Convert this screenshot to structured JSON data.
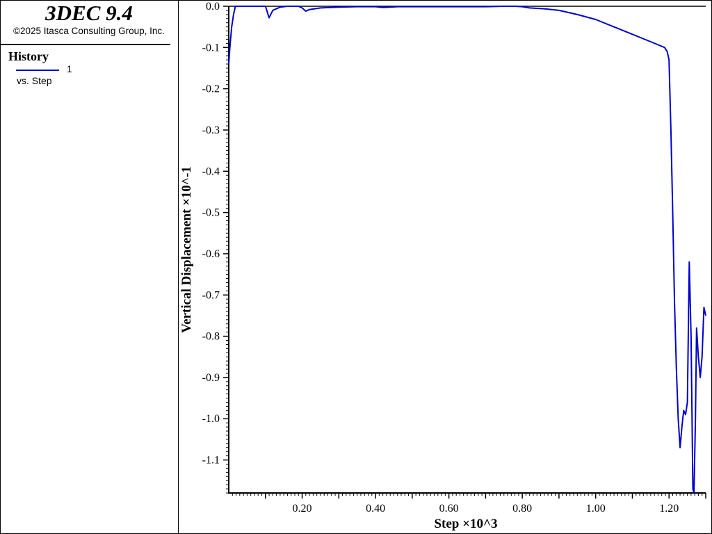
{
  "header": {
    "app_title": "3DEC 9.4",
    "copyright": "©2025 Itasca Consulting Group, Inc."
  },
  "legend": {
    "title": "History",
    "series_label": "1",
    "subtitle": "vs. Step"
  },
  "colors": {
    "series": "#0000cc",
    "axis": "#000000",
    "background": "#ffffff"
  },
  "chart_data": {
    "type": "line",
    "xlabel": "Step ×10^3",
    "ylabel": "Vertical Displacement ×10^-1",
    "xlim": [
      0,
      1.3
    ],
    "ylim": [
      -1.18,
      0
    ],
    "grid": false,
    "legend_position": "left-panel",
    "x_ticks": [
      "0.20",
      "0.40",
      "0.60",
      "0.80",
      "1.00",
      "1.20"
    ],
    "y_ticks": [
      "0.0",
      "-0.1",
      "-0.2",
      "-0.3",
      "-0.4",
      "-0.5",
      "-0.6",
      "-0.7",
      "-0.8",
      "-0.9",
      "-1.0",
      "-1.1"
    ],
    "series": [
      {
        "name": "1",
        "x": [
          0.0,
          0.003,
          0.008,
          0.013,
          0.018,
          0.025,
          0.05,
          0.08,
          0.1,
          0.11,
          0.12,
          0.14,
          0.16,
          0.19,
          0.2,
          0.21,
          0.22,
          0.25,
          0.3,
          0.35,
          0.4,
          0.42,
          0.44,
          0.46,
          0.5,
          0.55,
          0.6,
          0.65,
          0.7,
          0.75,
          0.78,
          0.8,
          0.82,
          0.86,
          0.9,
          0.95,
          1.0,
          1.05,
          1.1,
          1.15,
          1.188,
          1.195,
          1.2,
          1.205,
          1.21,
          1.215,
          1.22,
          1.225,
          1.23,
          1.235,
          1.24,
          1.245,
          1.25,
          1.255,
          1.26,
          1.265,
          1.268,
          1.272,
          1.275,
          1.28,
          1.285,
          1.29,
          1.295,
          1.3
        ],
        "y": [
          -0.14,
          -0.1,
          -0.05,
          -0.02,
          0.0,
          0.0,
          0.0,
          0.0,
          0.0,
          -0.028,
          -0.01,
          -0.002,
          0.0,
          0.0,
          -0.004,
          -0.012,
          -0.008,
          -0.004,
          -0.002,
          -0.001,
          -0.001,
          -0.003,
          -0.002,
          -0.001,
          -0.001,
          -0.001,
          -0.001,
          -0.001,
          -0.001,
          0.0,
          0.0,
          -0.001,
          -0.004,
          -0.006,
          -0.01,
          -0.02,
          -0.032,
          -0.05,
          -0.068,
          -0.086,
          -0.1,
          -0.11,
          -0.13,
          -0.3,
          -0.5,
          -0.72,
          -0.88,
          -1.0,
          -1.07,
          -1.02,
          -0.98,
          -0.99,
          -0.96,
          -0.62,
          -0.8,
          -1.17,
          -1.18,
          -1.0,
          -0.78,
          -0.85,
          -0.9,
          -0.85,
          -0.73,
          -0.75
        ]
      }
    ]
  }
}
